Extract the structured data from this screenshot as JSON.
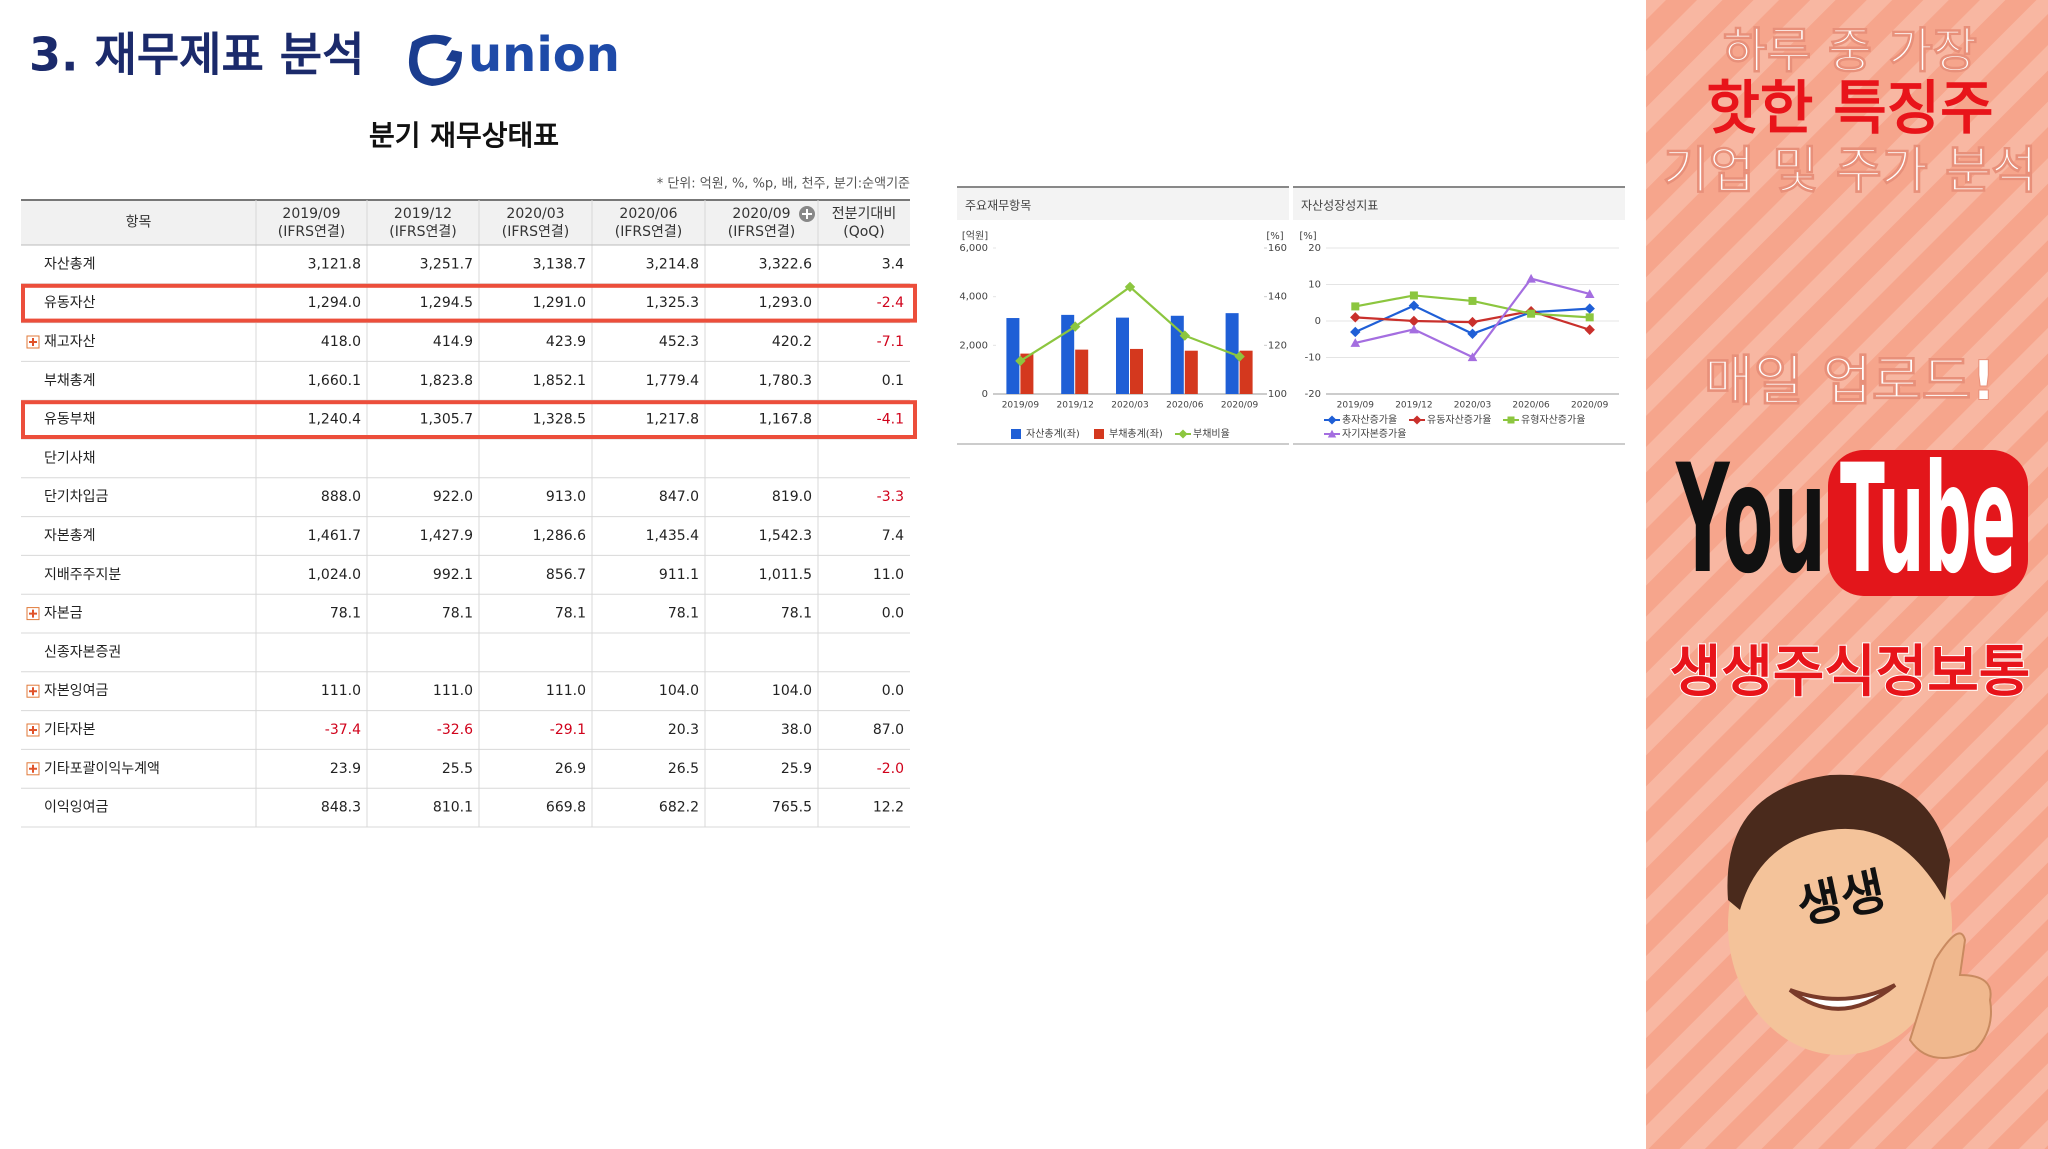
{
  "header": {
    "title": "3. 재무제표 분석",
    "logo": "union"
  },
  "table": {
    "title": "분기 재무상태표",
    "note": "* 단위: 억원, %, %p, 배, 천주, 분기:순액기준",
    "item_header": "항목",
    "columns": [
      {
        "period": "2019/09",
        "basis": "(IFRS연결)"
      },
      {
        "period": "2019/12",
        "basis": "(IFRS연결)"
      },
      {
        "period": "2020/03",
        "basis": "(IFRS연결)"
      },
      {
        "period": "2020/06",
        "basis": "(IFRS연결)"
      },
      {
        "period": "2020/09",
        "basis": "(IFRS연결)"
      },
      {
        "period": "전분기대비",
        "basis": "(QoQ)"
      }
    ],
    "rows": [
      {
        "label": "자산총계",
        "cells": [
          "3,121.8",
          "3,251.7",
          "3,138.7",
          "3,214.8",
          "3,322.6",
          "3.4"
        ]
      },
      {
        "label": "유동자산",
        "cells": [
          "1,294.0",
          "1,294.5",
          "1,291.0",
          "1,325.3",
          "1,293.0",
          "-2.4"
        ],
        "highlight": true
      },
      {
        "label": "재고자산",
        "cells": [
          "418.0",
          "414.9",
          "423.9",
          "452.3",
          "420.2",
          "-7.1"
        ],
        "expandable": true
      },
      {
        "label": "부채총계",
        "cells": [
          "1,660.1",
          "1,823.8",
          "1,852.1",
          "1,779.4",
          "1,780.3",
          "0.1"
        ]
      },
      {
        "label": "유동부채",
        "cells": [
          "1,240.4",
          "1,305.7",
          "1,328.5",
          "1,217.8",
          "1,167.8",
          "-4.1"
        ],
        "highlight": true
      },
      {
        "label": "단기사채"
      },
      {
        "label": "단기차입금",
        "cells": [
          "888.0",
          "922.0",
          "913.0",
          "847.0",
          "819.0",
          "-3.3"
        ]
      },
      {
        "label": "자본총계",
        "cells": [
          "1,461.7",
          "1,427.9",
          "1,286.6",
          "1,435.4",
          "1,542.3",
          "7.4"
        ]
      },
      {
        "label": "지배주주지분",
        "cells": [
          "1,024.0",
          "992.1",
          "856.7",
          "911.1",
          "1,011.5",
          "11.0"
        ]
      },
      {
        "label": "자본금",
        "cells": [
          "78.1",
          "78.1",
          "78.1",
          "78.1",
          "78.1",
          "0.0"
        ],
        "expandable": true
      },
      {
        "label": "신종자본증권"
      },
      {
        "label": "자본잉여금",
        "cells": [
          "111.0",
          "111.0",
          "111.0",
          "104.0",
          "104.0",
          "0.0"
        ],
        "expandable": true
      },
      {
        "label": "기타자본",
        "cells": [
          "-37.4",
          "-32.6",
          "-29.1",
          "20.3",
          "38.0",
          "87.0"
        ],
        "expandable": true
      },
      {
        "label": "기타포괄이익누계액",
        "cells": [
          "23.9",
          "25.5",
          "26.9",
          "26.5",
          "25.9",
          "-2.0"
        ],
        "expandable": true
      },
      {
        "label": "이익잉여금",
        "cells": [
          "848.3",
          "810.1",
          "669.8",
          "682.2",
          "765.5",
          "12.2"
        ]
      }
    ]
  },
  "chart_data": [
    {
      "type": "bar_line",
      "title": "주요재무항목",
      "y_label": "[억원]",
      "y2_label": "[%]",
      "categories": [
        "2019/09",
        "2019/12",
        "2020/03",
        "2020/06",
        "2020/09"
      ],
      "ylim": [
        0,
        6000
      ],
      "yticks": [
        0,
        {
          "value": 2000,
          "label": "2,000"
        },
        {
          "value": 4000,
          "label": "4,000"
        },
        {
          "value": 6000,
          "label": "6,000"
        }
      ],
      "y2lim": [
        100,
        160
      ],
      "y2ticks": [
        100,
        120,
        140,
        160
      ],
      "grid": false,
      "series": [
        {
          "name": "자산총계(좌)",
          "color": "#1f5fd6",
          "kind": "bar",
          "values": [
            3121.8,
            3251.7,
            3138.7,
            3214.8,
            3322.6
          ]
        },
        {
          "name": "부채총계(좌)",
          "color": "#d4381e",
          "kind": "bar",
          "values": [
            1660.1,
            1823.8,
            1852.1,
            1779.4,
            1780.3
          ]
        },
        {
          "name": "부채비율",
          "color": "#8cc63f",
          "kind": "line",
          "axis": "y2",
          "marker": "diamond",
          "values": [
            113.6,
            127.7,
            144.0,
            124.0,
            115.4
          ]
        }
      ]
    },
    {
      "type": "line",
      "title": "자산성장성지표",
      "y_label": "[%]",
      "categories": [
        "2019/09",
        "2019/12",
        "2020/03",
        "2020/06",
        "2020/09"
      ],
      "ylim": [
        -20,
        20
      ],
      "yticks": [
        -20,
        -10,
        0,
        10,
        20
      ],
      "grid": true,
      "series": [
        {
          "name": "총자산증가율",
          "color": "#1f5fd6",
          "marker": "diamond",
          "values": [
            -3,
            4.2,
            -3.5,
            2.4,
            3.4
          ]
        },
        {
          "name": "유동자산증가율",
          "color": "#c9302c",
          "marker": "diamond",
          "values": [
            1,
            0,
            -0.3,
            2.7,
            -2.4
          ]
        },
        {
          "name": "유형자산증가율",
          "color": "#8cc63f",
          "marker": "square",
          "values": [
            4,
            7,
            5.5,
            2,
            1
          ]
        },
        {
          "name": "자기자본증가율",
          "color": "#a46ee0",
          "marker": "triangle",
          "values": [
            -6,
            -2.3,
            -9.9,
            11.6,
            7.4
          ]
        }
      ]
    }
  ],
  "sidebar": {
    "lines": [
      "하루 중 가장",
      "핫한 특징주",
      "기업 및 주가 분석"
    ],
    "upload": "매일 업로드!",
    "youtube": [
      "You",
      "Tube"
    ],
    "channel": "생생주식정보통",
    "avatar": "생생"
  }
}
